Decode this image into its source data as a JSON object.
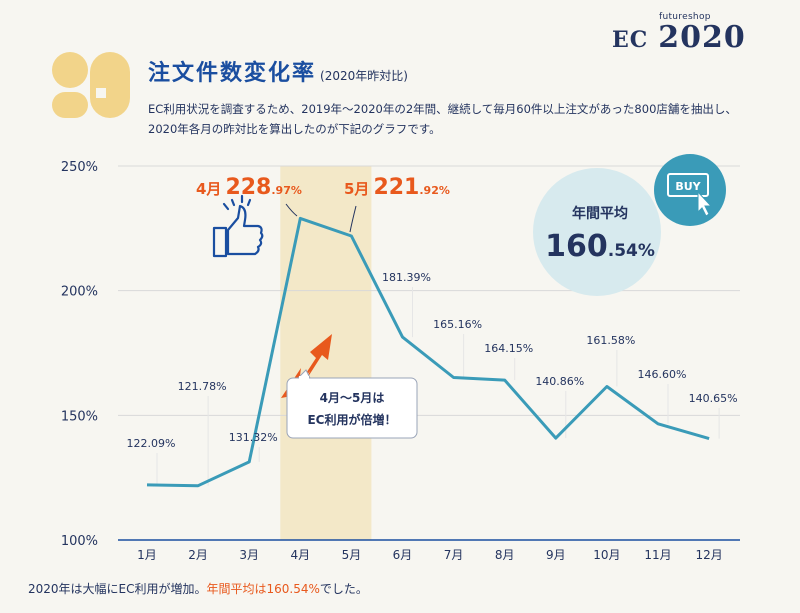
{
  "brand": {
    "small": "futureshop",
    "ec": "EC",
    "year": "2020"
  },
  "logo_glyph": "9",
  "title": "注文件数変化率",
  "title_note": "(2020年昨対比)",
  "description": [
    "EC利用状況を調査するため、2019年～2020年の2年間、継続して毎月60件以上注文があった800店舗を抽出し、",
    "2020年各月の昨対比を算出したのが下記のグラフです。"
  ],
  "footer": {
    "text": "2020年は大幅にEC利用が増加。",
    "highlight": "年間平均は160.54%",
    "tail": "でした。"
  },
  "colors": {
    "line": "#3a9bb8",
    "accent": "#e8591d",
    "navy": "#24345f",
    "band": "#f3e8c8",
    "circle": "#d7eaee",
    "logo": "#f2d48a"
  },
  "icons": [
    "thumbs-up-icon",
    "buy-button-icon",
    "rising-arrow-icon"
  ],
  "chart_data": {
    "type": "line",
    "categories": [
      "1月",
      "2月",
      "3月",
      "4月",
      "5月",
      "6月",
      "7月",
      "8月",
      "9月",
      "10月",
      "11月",
      "12月"
    ],
    "series": [
      {
        "values": [
          122.09,
          121.78,
          131.32,
          228.97,
          221.92,
          181.39,
          165.16,
          164.15,
          140.86,
          161.58,
          146.6,
          140.65
        ]
      }
    ],
    "data_labels": [
      "122.09%",
      "121.78%",
      "131.32%",
      "",
      "",
      "181.39%",
      "165.16%",
      "164.15%",
      "140.86%",
      "161.58%",
      "146.60%",
      "140.65%"
    ],
    "y_ticks": [
      "100%",
      "150%",
      "200%",
      "250%"
    ],
    "y_tick_values": [
      100,
      150,
      200,
      250
    ],
    "ylim": [
      100,
      250
    ],
    "grid": true,
    "highlight_band": [
      "4月",
      "5月"
    ],
    "peaks": [
      {
        "month": "4月",
        "int": "228",
        "dec": ".97%"
      },
      {
        "month": "5月",
        "int": "221",
        "dec": ".92%"
      }
    ],
    "average": {
      "label": "年間平均",
      "int": "160",
      "dec": ".54%"
    },
    "callout": [
      "4月～5月は",
      "EC利用が倍増！"
    ],
    "buy_label": "BUY"
  }
}
